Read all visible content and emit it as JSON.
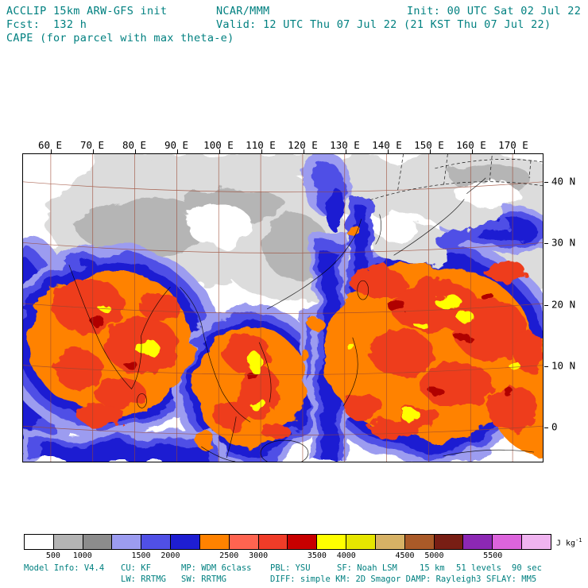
{
  "header": {
    "model_line": "ACCLIP 15km ARW-GFS init",
    "org": "NCAR/MMM",
    "init": "Init: 00 UTC Sat 02 Jul 22",
    "fcst": "Fcst:  132 h",
    "valid": "Valid: 12 UTC Thu 07 Jul 22 (21 KST Thu 07 Jul 22)",
    "field_title": "CAPE (for parcel with max theta-e)"
  },
  "map": {
    "lon_labels": [
      "60 E",
      "70 E",
      "80 E",
      "90 E",
      "100 E",
      "110 E",
      "120 E",
      "130 E",
      "140 E",
      "150 E",
      "160 E",
      "170 E"
    ],
    "lat_labels": [
      "40 N",
      "30 N",
      "20 N",
      "10 N",
      "0"
    ]
  },
  "colorbar": {
    "segment_count": 18,
    "colors": [
      "#ffffff",
      "#b4b4b4",
      "#8c8c8c",
      "#9c9cf0",
      "#5050e6",
      "#1e1ed2",
      "#ff8200",
      "#ff6450",
      "#f03c28",
      "#c80000",
      "#ffff00",
      "#e6e600",
      "#d7b265",
      "#aa5a28",
      "#781e14",
      "#8c28b4",
      "#dc64dc",
      "#f0b4f0"
    ],
    "tick_labels": [
      "500",
      "1000",
      "1500",
      "2000",
      "2500",
      "3000",
      "3500",
      "4000",
      "4500",
      "5000",
      "5500"
    ],
    "tick_boundaries": [
      1,
      2,
      4,
      5,
      7,
      8,
      10,
      11,
      13,
      14,
      16
    ],
    "units_base": "J kg",
    "units_exponent": "-1"
  },
  "footer": {
    "model_info": "Model Info: V4.4",
    "cu": "CU: KF",
    "mp": "MP: WDM 6class",
    "pbl": "PBL: YSU",
    "sf": "SF: Noah LSM",
    "resolution": "15 km",
    "levels": "51 levels",
    "timestep": "90 sec",
    "lw": "LW: RRTMG",
    "sw": "SW: RRTMG",
    "diff": "DIFF: simple KM: 2D Smagor DAMP: Rayleigh3",
    "sflay": "SFLAY: MM5"
  },
  "colors": {
    "text_teal": "#008080",
    "axis_text": "#000000",
    "graticule": "#9a4631"
  }
}
